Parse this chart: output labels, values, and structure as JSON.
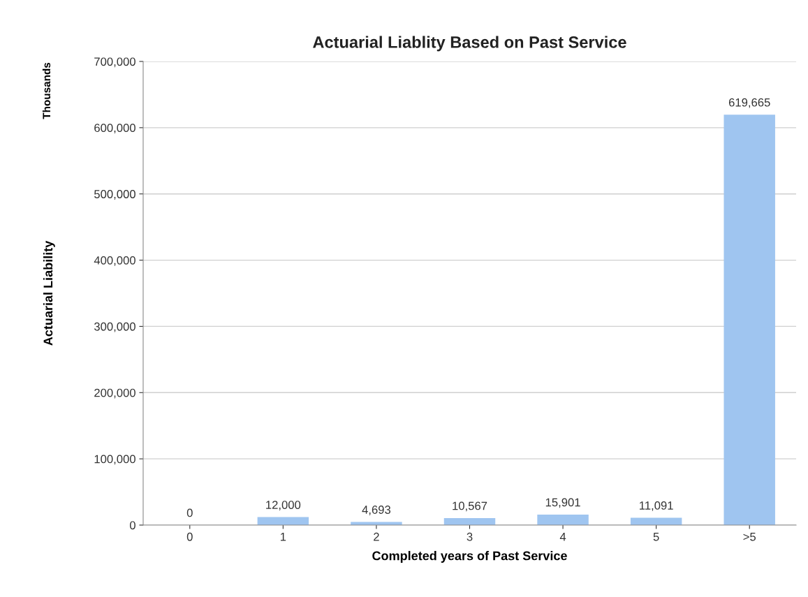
{
  "chart_data": {
    "type": "bar",
    "title": "Actuarial Liablity Based on Past Service",
    "xlabel": "Completed years of Past Service",
    "ylabel": "Actuarial Liability",
    "annotations": [
      "Thousands"
    ],
    "categories": [
      "0",
      "1",
      "2",
      "3",
      "4",
      "5",
      ">5"
    ],
    "values": [
      0,
      12000,
      4693,
      10567,
      15901,
      11091,
      619665
    ],
    "value_labels": [
      "0",
      "12,000",
      "4,693",
      "10,567",
      "15,901",
      "11,091",
      "619,665"
    ],
    "color": "#9fc5f0",
    "ylim": [
      0,
      700000
    ],
    "yticks": [
      {
        "value": 0,
        "label": "0"
      },
      {
        "value": 100000,
        "label": "100,000"
      },
      {
        "value": 200000,
        "label": "200,000"
      },
      {
        "value": 300000,
        "label": "300,000"
      },
      {
        "value": 400000,
        "label": "400,000"
      },
      {
        "value": 500000,
        "label": "500,000"
      },
      {
        "value": 600000,
        "label": "600,000"
      },
      {
        "value": 700000,
        "label": "700,000"
      }
    ],
    "grid": "y",
    "legend": false
  }
}
